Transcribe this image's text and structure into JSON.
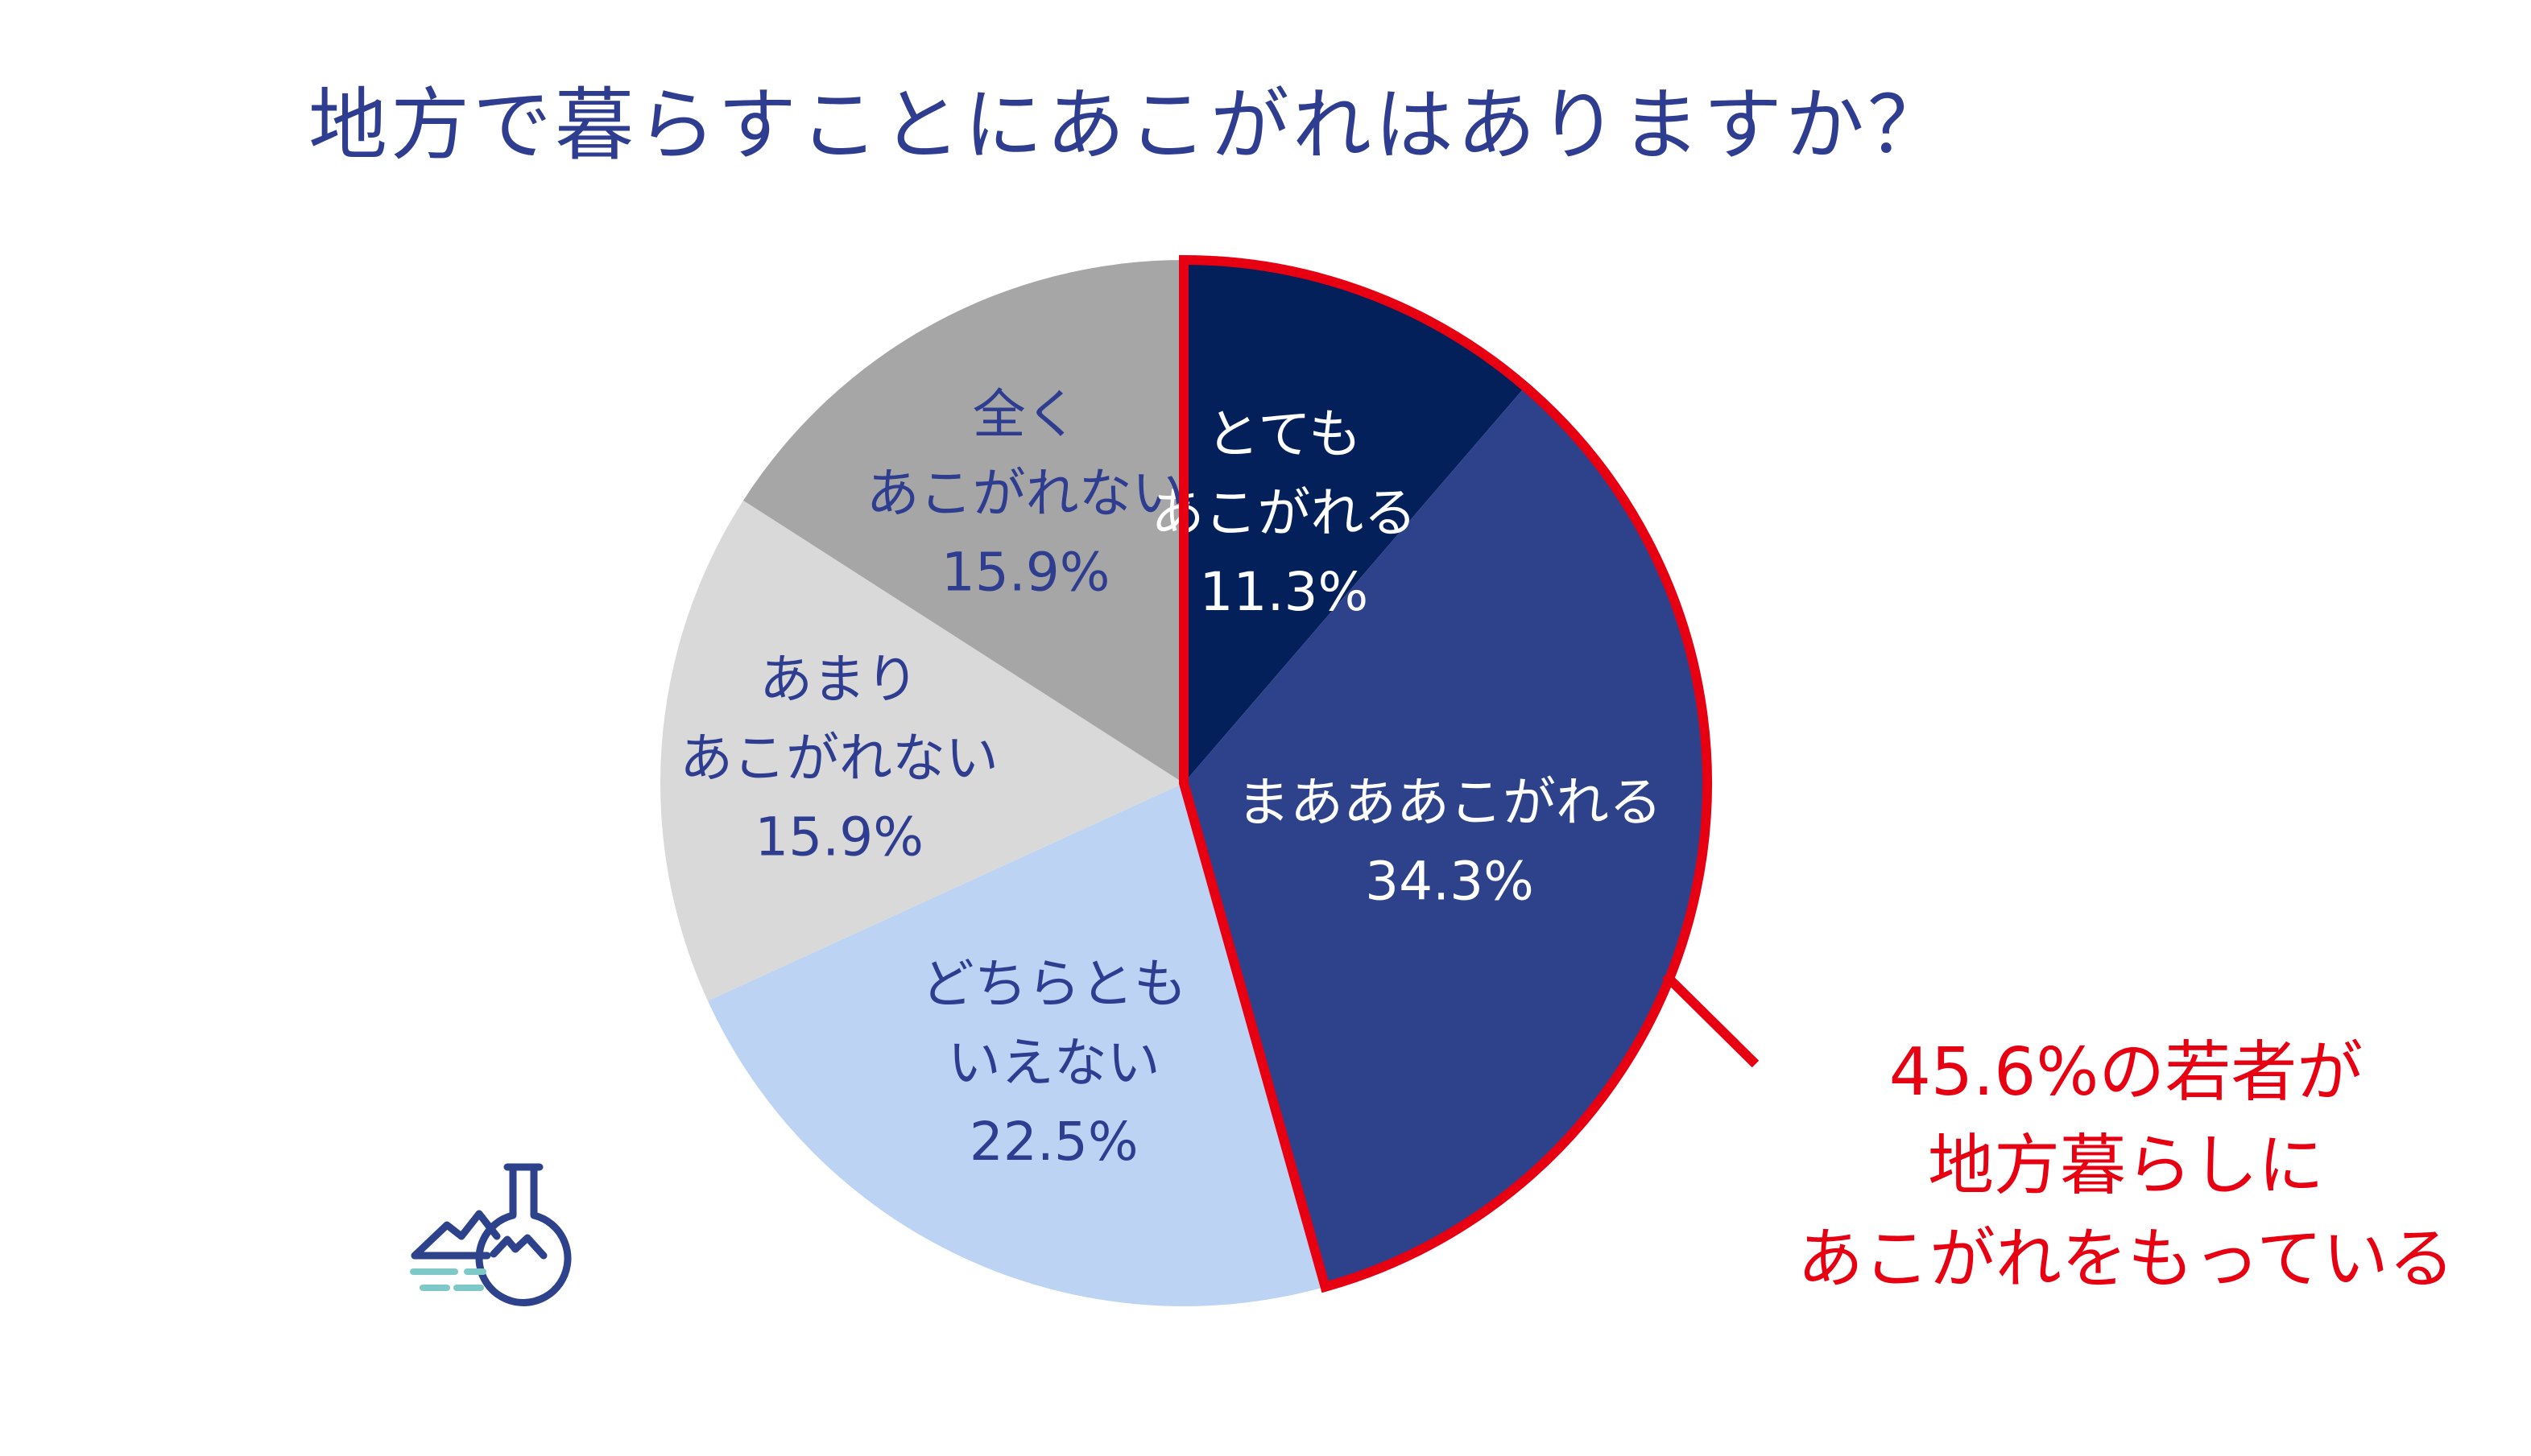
{
  "title": "地方で暮らすことにあこがれはありますか？",
  "chart_data": {
    "type": "pie",
    "title": "地方で暮らすことにあこがれはありますか？",
    "start_angle_deg": 0,
    "direction": "clockwise",
    "slices": [
      {
        "label_lines": [
          "とても",
          "あこがれる"
        ],
        "value": 11.3,
        "value_label": "11.3%",
        "color": "#03205a",
        "text_color": "#ffffff"
      },
      {
        "label_lines": [
          "まあああこがれる"
        ],
        "value": 34.3,
        "value_label": "34.3%",
        "color": "#2d428b",
        "text_color": "#ffffff"
      },
      {
        "label_lines": [
          "どちらとも",
          "いえない"
        ],
        "value": 22.5,
        "value_label": "22.5%",
        "color": "#bcd3f4",
        "text_color": "#2e3d8f"
      },
      {
        "label_lines": [
          "あまり",
          "あこがれない"
        ],
        "value": 15.9,
        "value_label": "15.9%",
        "color": "#d9d9d9",
        "text_color": "#2e3d8f"
      },
      {
        "label_lines": [
          "全く",
          "あこがれない"
        ],
        "value": 15.9,
        "value_label": "15.9%",
        "color": "#a6a6a6",
        "text_color": "#2e3d8f"
      }
    ],
    "highlight": {
      "slices": [
        0,
        1
      ],
      "outline_color": "#e60012",
      "callout_lines": [
        "45.6%の若者が",
        "地方暮らしに",
        "あこがれをもっている"
      ]
    }
  }
}
